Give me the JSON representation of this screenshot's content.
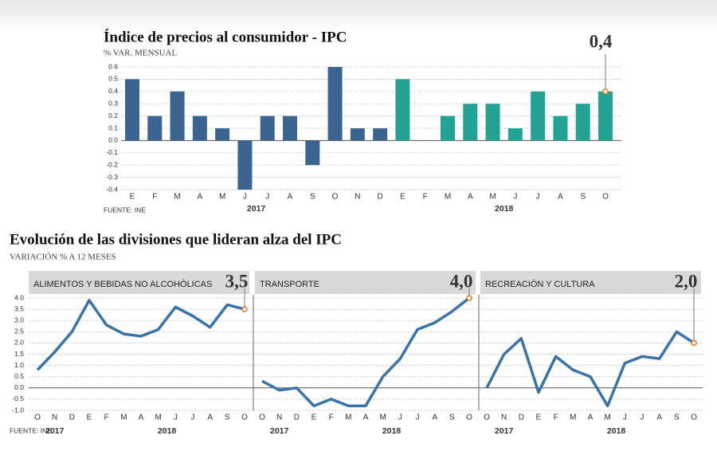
{
  "chart_data": [
    {
      "type": "bar",
      "title": "Índice de precios al consumidor - IPC",
      "subtitle": "% VAR. MENSUAL",
      "source": "FUENTE: INE",
      "series": [
        {
          "name": "2017",
          "color": "#3b6590",
          "categories": [
            "E",
            "F",
            "M",
            "A",
            "M",
            "J",
            "J",
            "A",
            "S",
            "O",
            "N",
            "D"
          ],
          "values": [
            0.5,
            0.2,
            0.4,
            0.2,
            0.1,
            -0.4,
            0.2,
            0.2,
            -0.2,
            0.6,
            0.1,
            0.1
          ]
        },
        {
          "name": "2018",
          "color": "#24a394",
          "categories": [
            "E",
            "F",
            "M",
            "A",
            "M",
            "J",
            "J",
            "A",
            "S",
            "O"
          ],
          "values": [
            0.5,
            0.0,
            0.2,
            0.3,
            0.3,
            0.1,
            0.4,
            0.2,
            0.3,
            0.4
          ]
        }
      ],
      "annotation": "0,4",
      "highlight_color": "#e07b1a",
      "ylim": [
        -0.4,
        0.6
      ],
      "yticks": [
        -0.4,
        -0.3,
        -0.2,
        -0.1,
        {
          "value": 0,
          "label": "0.0"
        },
        0.1,
        0.2,
        0.3,
        0.4,
        0.5,
        0.6
      ],
      "grid": true
    },
    {
      "type": "line",
      "title": "Evolución de las divisiones que lideran alza del IPC",
      "subtitle": "VARIACIÓN % A 12 MESES",
      "source": "FUENTE: INE",
      "periods": [
        {
          "label": "2017",
          "categories": [
            "O",
            "N",
            "D"
          ]
        },
        {
          "label": "2018",
          "categories": [
            "E",
            "F",
            "M",
            "A",
            "M",
            "J",
            "J",
            "A",
            "S",
            "O"
          ]
        }
      ],
      "color": "#3a73a8",
      "highlight_color": "#e07b1a",
      "panels": [
        {
          "title": "ALIMENTOS Y BEBIDAS NO ALCOHÓLICAS",
          "end_label": "3,5",
          "values": [
            0.8,
            1.6,
            2.5,
            3.9,
            2.8,
            2.4,
            2.3,
            2.6,
            3.6,
            3.2,
            2.7,
            3.7,
            3.5
          ]
        },
        {
          "title": "TRANSPORTE",
          "end_label": "4,0",
          "values": [
            0.3,
            -0.1,
            0.0,
            -0.8,
            -0.5,
            -0.8,
            -0.8,
            0.5,
            1.3,
            2.6,
            2.9,
            3.4,
            4.0
          ]
        },
        {
          "title": "RECREACIÓN Y CULTURA",
          "end_label": "2,0",
          "values": [
            0.0,
            1.5,
            2.2,
            -0.2,
            1.4,
            0.8,
            0.5,
            -0.8,
            1.1,
            1.4,
            1.3,
            2.5,
            2.0
          ]
        }
      ],
      "ylim": [
        -1.0,
        4.0
      ],
      "yticks": [
        {
          "value": -1,
          "label": "-1.0"
        },
        -0.5,
        {
          "value": 0,
          "label": "0.0"
        },
        0.5,
        {
          "value": 1,
          "label": "1.0"
        },
        1.5,
        {
          "value": 2,
          "label": "2.0"
        },
        2.5,
        {
          "value": 3,
          "label": "3.0"
        },
        3.5,
        {
          "value": 4,
          "label": "4.0"
        }
      ],
      "grid": true
    }
  ]
}
